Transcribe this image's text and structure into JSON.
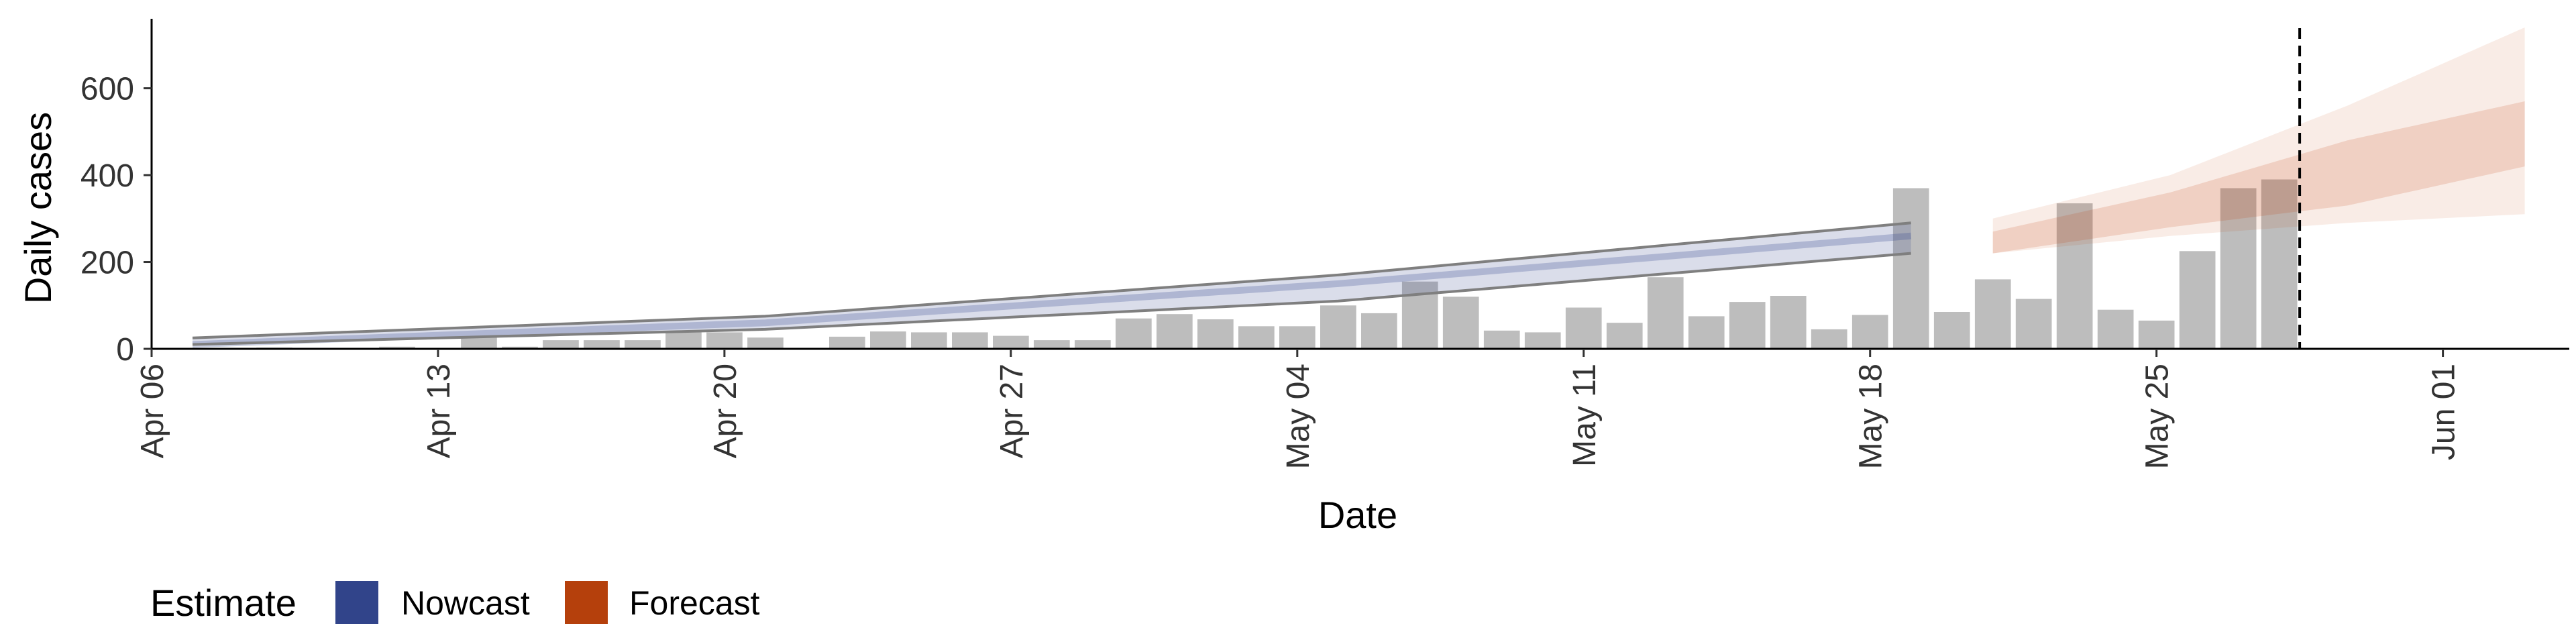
{
  "chart_data": {
    "type": "bar",
    "xlabel": "Date",
    "ylabel": "Daily cases",
    "x_ticks": [
      "Apr 06",
      "Apr 13",
      "Apr 20",
      "Apr 27",
      "May 04",
      "May 11",
      "May 18",
      "May 25",
      "Jun 01"
    ],
    "y_ticks": [
      0,
      200,
      400,
      600
    ],
    "xlim": [
      "2020-04-06",
      "2020-06-04"
    ],
    "ylim": [
      0,
      760
    ],
    "bars": {
      "start_date": "2020-04-07",
      "values": [
        2,
        2,
        3,
        2,
        1,
        5,
        0,
        28,
        5,
        20,
        20,
        20,
        38,
        38,
        26,
        0,
        28,
        40,
        38,
        38,
        30,
        20,
        20,
        70,
        80,
        68,
        52,
        52,
        100,
        82,
        155,
        120,
        42,
        38,
        95,
        60,
        165,
        75,
        108,
        122,
        45,
        78,
        370,
        85,
        160,
        115,
        335,
        90,
        65,
        225,
        370,
        390
      ],
      "color": "#bdbdbd"
    },
    "nowcast": {
      "start_date": "2020-04-07",
      "end_date": "2020-05-19",
      "median": [
        10,
        60,
        150,
        260
      ],
      "lower_90": [
        10,
        45,
        110,
        220
      ],
      "upper_90": [
        25,
        75,
        170,
        290
      ],
      "color": "#31448a"
    },
    "forecast": {
      "start_date": "2020-05-21",
      "end_date": "2020-06-03",
      "median": [
        230,
        320,
        410,
        500
      ],
      "lower_50": [
        220,
        280,
        330,
        420
      ],
      "upper_50": [
        270,
        360,
        480,
        570
      ],
      "lower_90": [
        220,
        260,
        290,
        310
      ],
      "upper_90": [
        300,
        400,
        560,
        740
      ],
      "color": "#c1400b"
    },
    "vline": {
      "date": "2020-05-28",
      "style": "dashed"
    },
    "legend": {
      "title": "Estimate",
      "position": "bottom-left",
      "items": [
        {
          "label": "Nowcast",
          "color": "#31448a"
        },
        {
          "label": "Forecast",
          "color": "#b5400c"
        }
      ]
    }
  }
}
